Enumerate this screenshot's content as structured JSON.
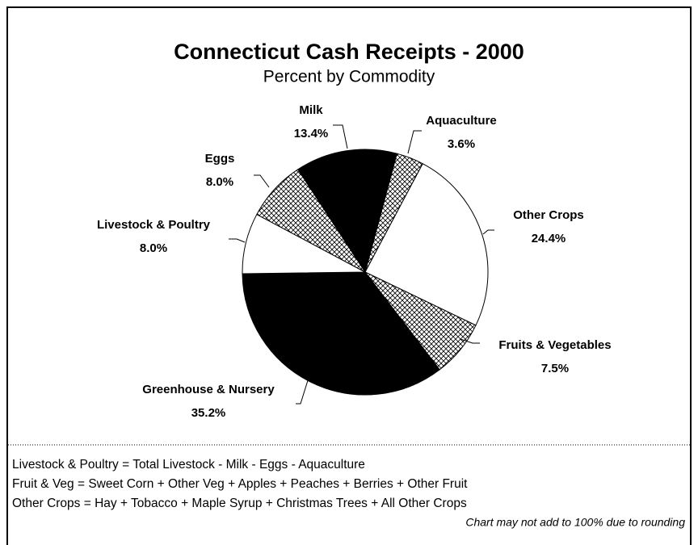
{
  "chart_data": {
    "type": "pie",
    "title": "Connecticut Cash Receipts - 2000",
    "subtitle": "Percent by Commodity",
    "categories": [
      "Aquaculture",
      "Other Crops",
      "Fruits & Vegetables",
      "Greenhouse & Nursery",
      "Livestock & Poultry",
      "Eggs",
      "Milk"
    ],
    "values": [
      3.6,
      24.4,
      7.5,
      35.2,
      8.0,
      8.0,
      13.4
    ],
    "value_labels": [
      "3.6%",
      "24.4%",
      "7.5%",
      "35.2%",
      "8.0%",
      "8.0%",
      "13.4%"
    ],
    "fills": [
      "hatch",
      "white",
      "hatch",
      "black",
      "white",
      "hatch",
      "black"
    ],
    "notes": [
      "Livestock & Poultry = Total Livestock - Milk - Eggs - Aquaculture",
      "Fruit & Veg = Sweet Corn + Other Veg + Apples + Peaches + Berries + Other Fruit",
      "Other Crops = Hay + Tobacco + Maple Syrup + Christmas Trees + All Other Crops"
    ],
    "disclaimer": "Chart may not add to 100% due to rounding"
  }
}
